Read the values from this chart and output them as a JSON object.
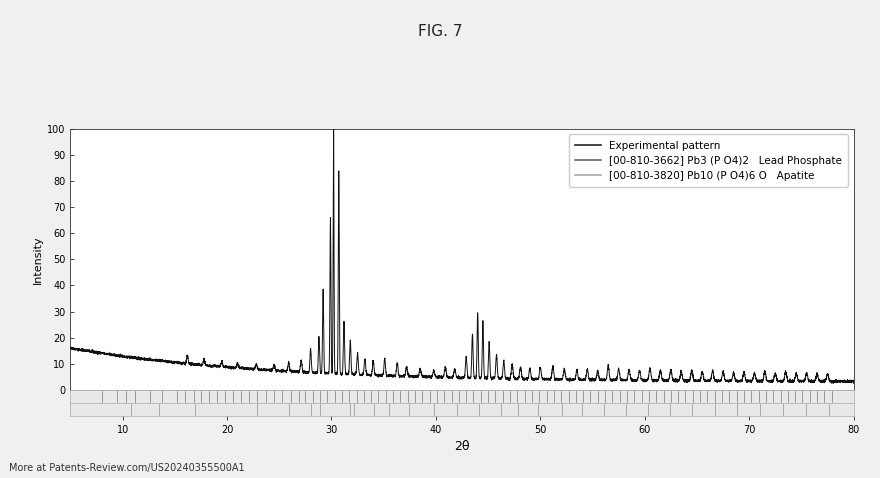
{
  "title": "FIG. 7",
  "xlabel": "2θ",
  "ylabel": "Intensity",
  "xlim": [
    5,
    80
  ],
  "ylim": [
    0,
    100
  ],
  "yticks": [
    0,
    10,
    20,
    30,
    40,
    50,
    60,
    70,
    80,
    90,
    100
  ],
  "ytick_labels": [
    "0",
    "10",
    "20",
    "30",
    "40",
    "50",
    "60",
    "70",
    "80",
    "90",
    "100"
  ],
  "background_color": "#f0f0f0",
  "plot_bg_color": "#ffffff",
  "legend_labels": [
    "Experimental pattern",
    "[00-810-3662] Pb3 (P O4)2   Lead Phosphate",
    "[00-810-3820] Pb10 (P O4)6 O   Apatite"
  ],
  "legend_colors": [
    "#222222",
    "#666666",
    "#aaaaaa"
  ],
  "watermark": "More at Patents-Review.com/US20240355500A1",
  "exp_color": "#111111",
  "ref1_color": "#777777",
  "ref2_color": "#aaaaaa",
  "lead_phosphate_peaks": [
    8.0,
    9.5,
    10.3,
    11.2,
    12.6,
    13.8,
    15.2,
    16.0,
    16.8,
    17.5,
    18.3,
    19.0,
    19.8,
    20.6,
    21.3,
    22.1,
    22.9,
    23.7,
    24.5,
    25.3,
    26.1,
    26.9,
    27.5,
    28.2,
    28.9,
    29.6,
    30.3,
    31.0,
    31.7,
    32.4,
    33.1,
    33.8,
    34.5,
    35.2,
    35.9,
    36.6,
    37.3,
    38.0,
    38.7,
    39.4,
    40.1,
    40.8,
    41.5,
    42.2,
    42.9,
    43.6,
    44.3,
    45.0,
    45.7,
    46.4,
    47.1,
    47.8,
    48.5,
    49.2,
    49.9,
    50.6,
    51.3,
    52.0,
    52.7,
    53.4,
    54.1,
    54.8,
    55.5,
    56.2,
    56.9,
    57.6,
    58.3,
    59.0,
    59.7,
    60.4,
    61.1,
    61.8,
    62.5,
    63.2,
    63.9,
    64.6,
    65.3,
    66.0,
    66.7,
    67.4,
    68.1,
    68.8,
    69.5,
    70.2,
    70.9,
    71.6,
    72.3,
    73.0,
    73.7,
    74.4,
    75.1,
    75.8,
    76.5,
    77.2,
    77.9
  ],
  "apatite_peaks": [
    10.8,
    13.5,
    16.9,
    22.9,
    25.9,
    28.0,
    28.9,
    31.8,
    32.2,
    34.1,
    35.5,
    37.4,
    39.8,
    42.0,
    44.1,
    46.2,
    47.9,
    49.8,
    52.1,
    54.0,
    56.1,
    58.2,
    60.3,
    62.4,
    64.5,
    66.7,
    68.8,
    71.0,
    73.2,
    75.4,
    77.6
  ]
}
